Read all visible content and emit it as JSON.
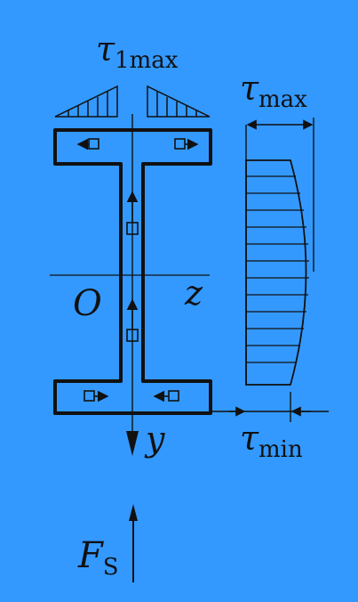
{
  "diagram": {
    "background_color": "#3399FF",
    "line_color": "#111111",
    "labels": {
      "tau_1max": {
        "symbol": "τ",
        "subscript": "1max"
      },
      "tau_max": {
        "symbol": "τ",
        "subscript": "max"
      },
      "tau_min": {
        "symbol": "τ",
        "subscript": "min"
      },
      "origin": "O",
      "z_axis": "z",
      "y_axis": "y",
      "shear_force": {
        "symbol": "F",
        "subscript": "S"
      }
    }
  }
}
